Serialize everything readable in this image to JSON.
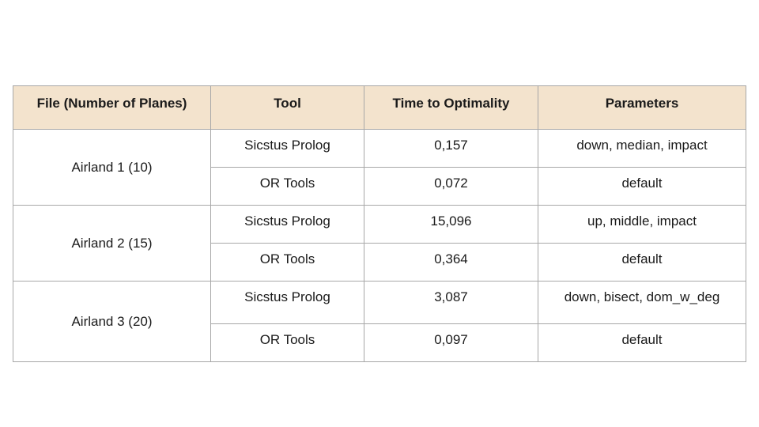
{
  "table": {
    "headers": [
      "File (Number of Planes)",
      "Tool",
      "Time to Optimality",
      "Parameters"
    ],
    "groups": [
      {
        "file": "Airland 1 (10)",
        "rows": [
          {
            "tool": "Sicstus Prolog",
            "time": "0,157",
            "params": "down, median, impact"
          },
          {
            "tool": "OR Tools",
            "time": "0,072",
            "params": "default"
          }
        ]
      },
      {
        "file": "Airland 2 (15)",
        "rows": [
          {
            "tool": "Sicstus Prolog",
            "time": "15,096",
            "params": "up, middle, impact"
          },
          {
            "tool": "OR Tools",
            "time": "0,364",
            "params": "default"
          }
        ]
      },
      {
        "file": "Airland 3 (20)",
        "rows": [
          {
            "tool": "Sicstus Prolog",
            "time": "3,087",
            "params": "down, bisect, dom_w_deg"
          },
          {
            "tool": "OR Tools",
            "time": "0,097",
            "params": "default"
          }
        ]
      }
    ],
    "colors": {
      "header_bg": "#f3e3cd",
      "border": "#a7a7a7",
      "text": "#1a1a1a"
    }
  }
}
